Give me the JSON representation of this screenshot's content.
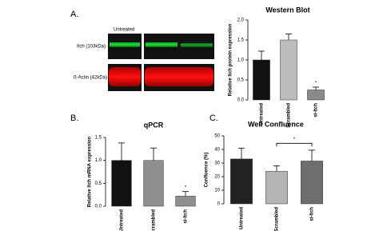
{
  "blot": {
    "panel_label": "A.",
    "column_label": "Untreated",
    "row_labels": [
      "Itch (103kDa)",
      "ß-Actin (42kDa)"
    ]
  },
  "panel_labels": [
    "B.",
    "C."
  ],
  "chart_data": [
    {
      "type": "bar",
      "title": "Western Blot",
      "ylabel": "Relative Itch protein expression",
      "categories": [
        "Untreated",
        "Scrambled",
        "si-Itch"
      ],
      "values": [
        1.0,
        1.5,
        0.25
      ],
      "errors": [
        0.22,
        0.15,
        0.07
      ],
      "colors": [
        "#111111",
        "#bcbcbc",
        "#8a8a8a"
      ],
      "ylim": [
        0,
        2
      ],
      "yticks": [
        {
          "value": 0,
          "label": "0.0"
        },
        {
          "value": 0.5,
          "label": "0.5"
        },
        {
          "value": 1,
          "label": "1.0"
        },
        {
          "value": 1.5,
          "label": "1.5"
        },
        {
          "value": 2,
          "label": "2.0"
        }
      ],
      "annotation": "*"
    },
    {
      "type": "bar",
      "title": "qPCR",
      "ylabel": "Relative Itch mRNA expression",
      "categories": [
        "Untreated",
        "Scrambled",
        "si-Itch"
      ],
      "values": [
        1.0,
        1.0,
        0.22
      ],
      "errors": [
        0.38,
        0.27,
        0.1
      ],
      "colors": [
        "#111111",
        "#8f8f8f",
        "#8f8f8f"
      ],
      "ylim": [
        0,
        1.5
      ],
      "yticks": [
        {
          "value": 0,
          "label": "0.0"
        },
        {
          "value": 0.5,
          "label": "0.5"
        },
        {
          "value": 1,
          "label": "1.0"
        },
        {
          "value": 1.5,
          "label": "1.5"
        }
      ],
      "annotation": "*"
    },
    {
      "type": "bar",
      "title": "Well Confluence",
      "ylabel": "Confluence (%)",
      "categories": [
        "Untreated",
        "Scrambled",
        "si-Itch"
      ],
      "values": [
        33,
        24,
        31.5
      ],
      "errors": [
        8,
        4,
        8
      ],
      "colors": [
        "#222222",
        "#b5b5b5",
        "#6e6e6e"
      ],
      "ylim": [
        0,
        50
      ],
      "yticks": [
        0,
        10,
        20,
        30,
        40,
        50
      ],
      "annotation": "*"
    }
  ]
}
